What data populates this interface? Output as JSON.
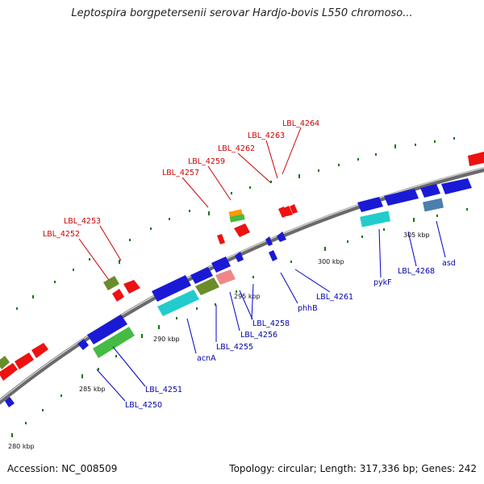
{
  "title": "Leptospira borgpetersenii serovar Hardjo-bovis L550 chromoso...",
  "footer": {
    "accession": "Accession: NC_008509",
    "summary": "Topology: circular; Length: 317,336 bp; Genes: 242"
  },
  "scale_labels": [
    "280 kbp",
    "285 kbp",
    "290 kbp",
    "295 kbp",
    "300 kbp",
    "305 kbp"
  ],
  "gene_labels_outer": [
    "LBL_4252",
    "LBL_4253",
    "LBL_4257",
    "LBL_4259",
    "LBL_4262",
    "LBL_4263",
    "LBL_4264"
  ],
  "gene_labels_inner": [
    "LBL_4250",
    "LBL_4251",
    "acnA",
    "LBL_4255",
    "LBL_4256",
    "LBL_4258",
    "phhB",
    "LBL_4261",
    "pykF",
    "LBL_4268",
    "asd"
  ],
  "colors": {
    "backbone": "#7a7a7a",
    "red": "#ee1111",
    "blue": "#1a1ad6",
    "green": "#44bb44",
    "olive": "#6b8c2a",
    "cyan": "#22cccc",
    "pink": "#ee8888",
    "orange": "#ff9900",
    "steel": "#4a7fae",
    "tick": "#117711",
    "label_red": "#cc0000",
    "label_blue": "#0000aa"
  }
}
